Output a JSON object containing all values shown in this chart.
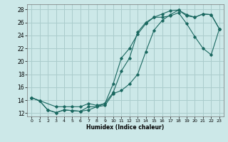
{
  "xlabel": "Humidex (Indice chaleur)",
  "background_color": "#cce8e8",
  "grid_color": "#aacccc",
  "line_color": "#1a6860",
  "xlim": [
    -0.5,
    23.5
  ],
  "ylim": [
    11.5,
    28.8
  ],
  "xticks": [
    0,
    1,
    2,
    3,
    4,
    5,
    6,
    7,
    8,
    9,
    10,
    11,
    12,
    13,
    14,
    15,
    16,
    17,
    18,
    19,
    20,
    21,
    22,
    23
  ],
  "yticks": [
    12,
    14,
    16,
    18,
    20,
    22,
    24,
    26,
    28
  ],
  "curve1_x": [
    0,
    1,
    2,
    3,
    4,
    5,
    6,
    7,
    8,
    9,
    10,
    11,
    12,
    13,
    14,
    15,
    16,
    17,
    18,
    19,
    20,
    21,
    22,
    23
  ],
  "curve1_y": [
    14.4,
    13.9,
    12.5,
    12.1,
    12.5,
    12.4,
    12.3,
    13.0,
    13.0,
    13.5,
    15.2,
    18.5,
    20.5,
    24.5,
    26.0,
    26.8,
    27.3,
    27.8,
    27.9,
    27.2,
    26.8,
    27.3,
    27.2,
    25.0
  ],
  "curve2_x": [
    0,
    1,
    2,
    3,
    4,
    5,
    6,
    7,
    8,
    9,
    10,
    11,
    12,
    13,
    14,
    15,
    16,
    17,
    18,
    19,
    20,
    21,
    22,
    23
  ],
  "curve2_y": [
    14.4,
    13.9,
    12.5,
    12.1,
    12.5,
    12.4,
    12.3,
    12.5,
    13.0,
    13.2,
    15.0,
    15.5,
    16.5,
    18.0,
    21.5,
    24.8,
    26.3,
    27.2,
    27.9,
    27.0,
    26.8,
    27.3,
    27.2,
    25.0
  ],
  "curve3_x": [
    0,
    3,
    4,
    5,
    6,
    7,
    8,
    9,
    10,
    11,
    12,
    13,
    14,
    15,
    16,
    17,
    18,
    19,
    20,
    21,
    22,
    23
  ],
  "curve3_y": [
    14.4,
    13.0,
    13.0,
    13.0,
    13.0,
    13.5,
    13.2,
    13.5,
    16.5,
    20.5,
    22.0,
    24.2,
    25.8,
    26.8,
    26.8,
    27.0,
    27.5,
    25.8,
    23.8,
    22.0,
    21.0,
    25.0
  ]
}
